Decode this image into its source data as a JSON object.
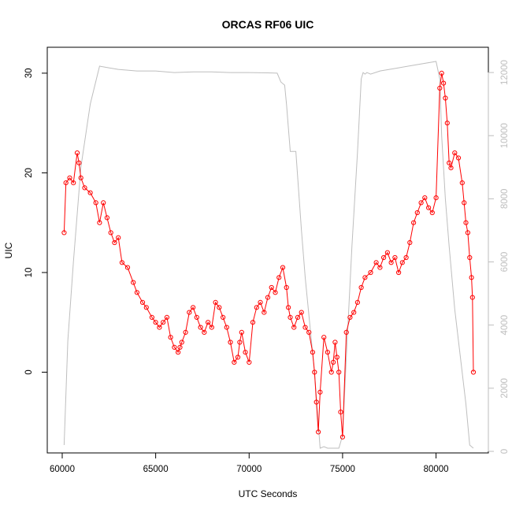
{
  "chart_data": {
    "type": "scatter",
    "title": "ORCAS RF06 UIC",
    "xlabel": "UTC Seconds",
    "ylabel": "UIC",
    "xlim": [
      59200,
      82800
    ],
    "ylim": [
      -8.1,
      32.6
    ],
    "y2lim": [
      -50,
      12800
    ],
    "xticks": [
      "60000",
      "65000",
      "70000",
      "75000",
      "80000"
    ],
    "yticks": [
      "0",
      "10",
      "20",
      "30"
    ],
    "y2ticks": [
      "0",
      "2000",
      "4000",
      "6000",
      "8000",
      "10000",
      "12000"
    ],
    "grid": false,
    "colors": {
      "uic": "#ff0000",
      "altitude": "#bebebe"
    },
    "series": [
      {
        "name": "",
        "axis": "left",
        "style": "points-and-lines",
        "x": [
          60100,
          60200,
          60400,
          60600,
          60800,
          60900,
          61000,
          61200,
          61500,
          61800,
          62000,
          62200,
          62400,
          62600,
          62800,
          63000,
          63200,
          63500,
          63800,
          64000,
          64300,
          64500,
          64800,
          65000,
          65200,
          65400,
          65600,
          65800,
          66000,
          66200,
          66300,
          66400,
          66600,
          66800,
          67000,
          67200,
          67400,
          67600,
          67800,
          68000,
          68200,
          68400,
          68600,
          68800,
          69000,
          69200,
          69400,
          69500,
          69600,
          69800,
          70000,
          70200,
          70400,
          70600,
          70800,
          71000,
          71200,
          71400,
          71600,
          71800,
          72000,
          72100,
          72200,
          72400,
          72600,
          72800,
          73000,
          73200,
          73400,
          73500,
          73600,
          73700,
          73800,
          74000,
          74200,
          74400,
          74500,
          74600,
          74700,
          74800,
          74900,
          75000,
          75200,
          75400,
          75600,
          75800,
          76000,
          76200,
          76500,
          76800,
          77000,
          77200,
          77400,
          77600,
          77800,
          78000,
          78200,
          78400,
          78600,
          78800,
          79000,
          79200,
          79400,
          79600,
          79800,
          80000,
          80200,
          80300,
          80400,
          80500,
          80600,
          80700,
          80800,
          81000,
          81200,
          81400,
          81500,
          81600,
          81700,
          81800,
          81900,
          81950,
          82000
        ],
        "y": [
          14,
          19,
          19.5,
          19,
          22,
          21,
          19.5,
          18.5,
          18,
          17,
          15,
          17,
          15.5,
          14,
          13,
          13.5,
          11,
          10.5,
          9,
          8,
          7,
          6.5,
          5.5,
          5,
          4.5,
          5,
          5.5,
          3.5,
          2.5,
          2,
          2.5,
          3,
          4,
          6,
          6.5,
          5.5,
          4.5,
          4,
          5,
          4.5,
          7,
          6.5,
          5.5,
          4.5,
          3,
          1,
          1.5,
          3,
          4,
          2,
          1,
          5,
          6.5,
          7,
          6,
          7.5,
          8.5,
          8,
          9.5,
          10.5,
          8.5,
          6.5,
          5.5,
          4.5,
          5.5,
          6,
          4.5,
          4,
          2,
          0,
          -3,
          -6,
          -2,
          3.5,
          2,
          0,
          1,
          3,
          1.5,
          0,
          -4,
          -6.5,
          4,
          5.5,
          6,
          7,
          8.5,
          9.5,
          10,
          11,
          10.5,
          11.5,
          12,
          11,
          11.5,
          10,
          11,
          11.5,
          13,
          15,
          16,
          17,
          17.5,
          16.5,
          16,
          17.5,
          28.5,
          30,
          29,
          27.5,
          25,
          21,
          20.5,
          22,
          21.5,
          19,
          17,
          15,
          14,
          11.5,
          9.5,
          7.5,
          0
        ]
      },
      {
        "name": "",
        "axis": "right",
        "style": "line",
        "x": [
          60100,
          60300,
          60600,
          61000,
          61500,
          62000,
          62500,
          63000,
          64000,
          65000,
          66000,
          67000,
          68000,
          69000,
          70000,
          71000,
          71500,
          71700,
          71900,
          72000,
          72200,
          72500,
          72800,
          73000,
          73500,
          73800,
          74000,
          74200,
          74500,
          74800,
          75000,
          75200,
          75500,
          75800,
          76000,
          76100,
          76200,
          76300,
          76500,
          77000,
          78000,
          79000,
          80000,
          80200,
          80300,
          80500,
          80700,
          81000,
          81300,
          81600,
          81800,
          82000
        ],
        "y": [
          200,
          3500,
          6000,
          9000,
          11000,
          12200,
          12150,
          12100,
          12050,
          12050,
          12000,
          12020,
          12020,
          12000,
          12000,
          11990,
          11980,
          11700,
          11600,
          11000,
          9500,
          9500,
          7000,
          5500,
          2500,
          100,
          150,
          100,
          100,
          100,
          500,
          3000,
          6500,
          9500,
          11800,
          12000,
          11950,
          12000,
          11950,
          12050,
          12150,
          12250,
          12350,
          11800,
          10000,
          8000,
          6500,
          4500,
          3000,
          1500,
          200,
          100
        ]
      }
    ]
  }
}
